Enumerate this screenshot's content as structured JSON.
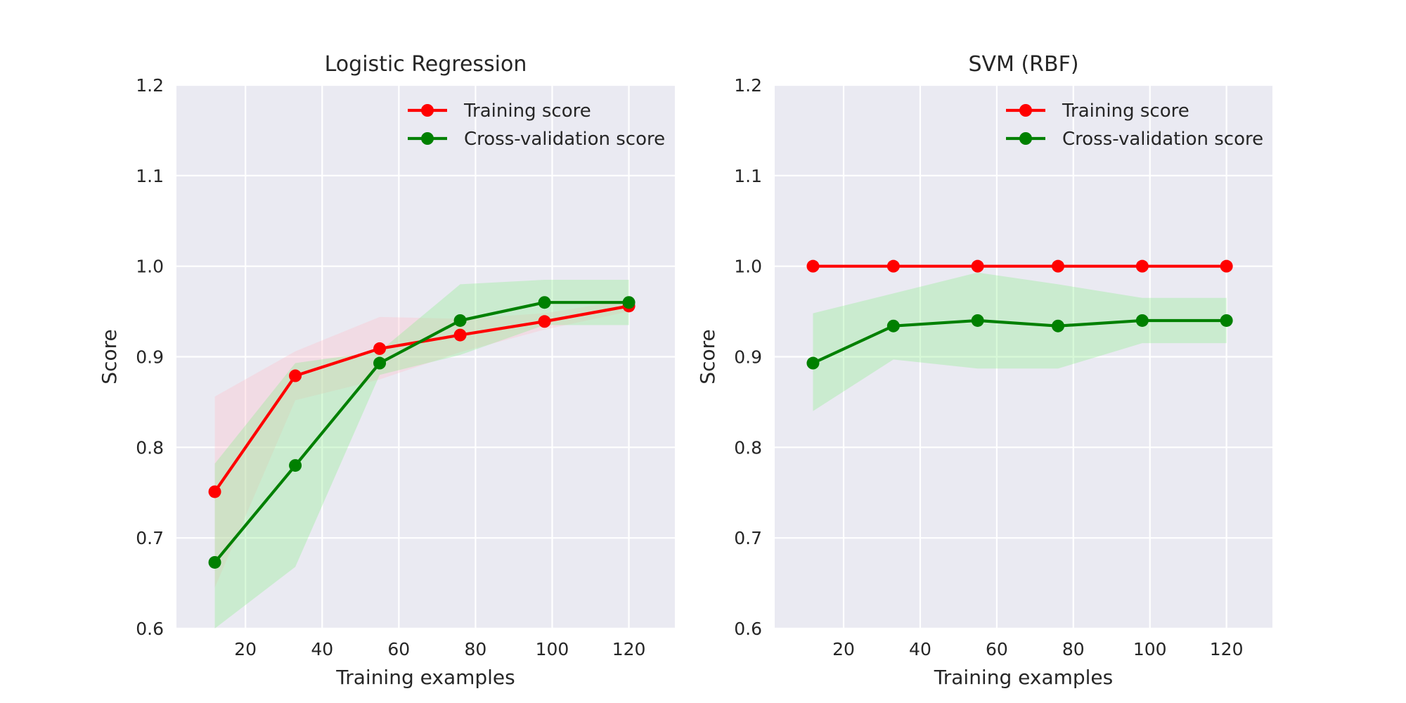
{
  "colors": {
    "background": "#eaeaf2",
    "grid": "#ffffff",
    "training": "#ff0000",
    "cv": "#008000",
    "training_band": "#ffc0cb",
    "cv_band": "#90ee90"
  },
  "chart_data": [
    {
      "type": "line",
      "title": "Logistic Regression",
      "xlabel": "Training examples",
      "ylabel": "Score",
      "xlim": [
        2,
        132
      ],
      "ylim": [
        0.6,
        1.2
      ],
      "xticks": [
        20,
        40,
        60,
        80,
        100,
        120
      ],
      "yticks": [
        0.6,
        0.7,
        0.8,
        0.9,
        1.0,
        1.1,
        1.2
      ],
      "xtick_labels": [
        "20",
        "40",
        "60",
        "80",
        "100",
        "120"
      ],
      "ytick_labels": [
        "0.6",
        "0.7",
        "0.8",
        "0.9",
        "1.0",
        "1.1",
        "1.2"
      ],
      "grid": true,
      "legend": "top-right",
      "x": [
        12,
        33,
        55,
        76,
        98,
        120
      ],
      "series": [
        {
          "name": "Training score",
          "color_key": "training",
          "values": [
            0.751,
            0.879,
            0.909,
            0.924,
            0.939,
            0.956
          ],
          "band_lower": [
            0.645,
            0.852,
            0.875,
            0.905,
            0.93,
            0.95
          ],
          "band_upper": [
            0.856,
            0.906,
            0.944,
            0.942,
            0.948,
            0.963
          ]
        },
        {
          "name": "Cross-validation score",
          "color_key": "cv",
          "values": [
            0.673,
            0.78,
            0.893,
            0.94,
            0.96,
            0.96
          ],
          "band_lower": [
            0.6,
            0.668,
            0.88,
            0.902,
            0.935,
            0.935
          ],
          "band_upper": [
            0.782,
            0.893,
            0.906,
            0.98,
            0.985,
            0.985
          ]
        }
      ]
    },
    {
      "type": "line",
      "title": "SVM (RBF)",
      "xlabel": "Training examples",
      "ylabel": "Score",
      "xlim": [
        2,
        132
      ],
      "ylim": [
        0.6,
        1.2
      ],
      "xticks": [
        20,
        40,
        60,
        80,
        100,
        120
      ],
      "yticks": [
        0.6,
        0.7,
        0.8,
        0.9,
        1.0,
        1.1,
        1.2
      ],
      "xtick_labels": [
        "20",
        "40",
        "60",
        "80",
        "100",
        "120"
      ],
      "ytick_labels": [
        "0.6",
        "0.7",
        "0.8",
        "0.9",
        "1.0",
        "1.1",
        "1.2"
      ],
      "grid": true,
      "legend": "top-right",
      "x": [
        12,
        33,
        55,
        76,
        98,
        120
      ],
      "series": [
        {
          "name": "Training score",
          "color_key": "training",
          "values": [
            1.0,
            1.0,
            1.0,
            1.0,
            1.0,
            1.0
          ],
          "band_lower": [
            1.0,
            1.0,
            1.0,
            1.0,
            1.0,
            1.0
          ],
          "band_upper": [
            1.0,
            1.0,
            1.0,
            1.0,
            1.0,
            1.0
          ]
        },
        {
          "name": "Cross-validation score",
          "color_key": "cv",
          "values": [
            0.893,
            0.934,
            0.94,
            0.934,
            0.94,
            0.94
          ],
          "band_lower": [
            0.84,
            0.897,
            0.887,
            0.887,
            0.915,
            0.915
          ],
          "band_upper": [
            0.948,
            0.97,
            0.993,
            0.98,
            0.965,
            0.965
          ]
        }
      ]
    }
  ]
}
